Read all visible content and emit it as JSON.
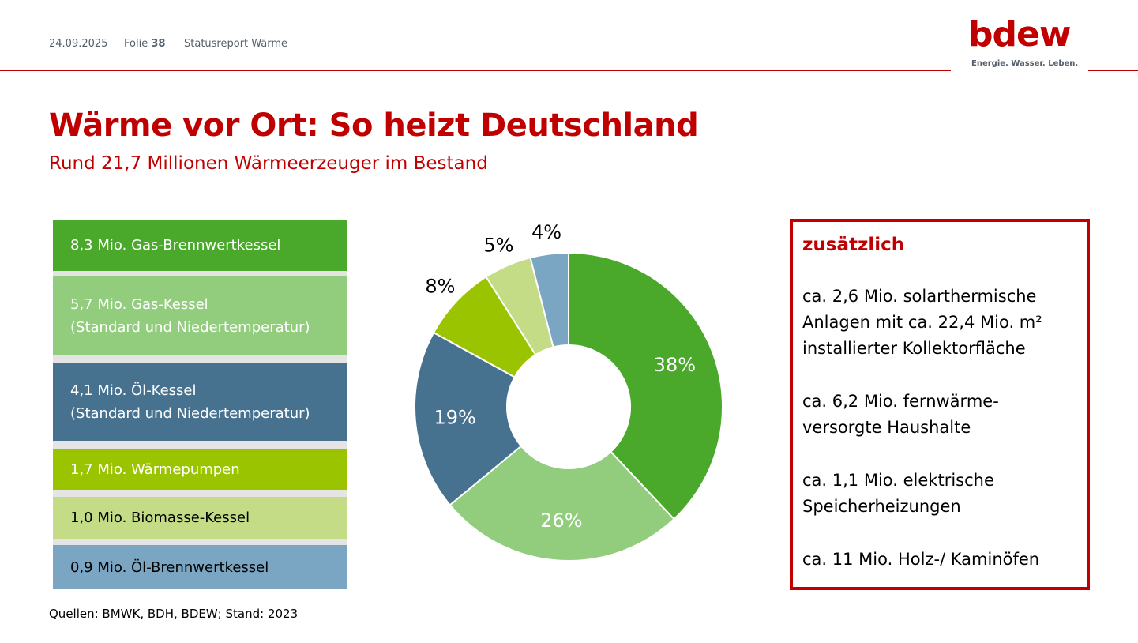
{
  "header": {
    "date": "24.09.2025",
    "folie_label": "Folie",
    "folie_number": "38",
    "report": "Statusreport Wärme"
  },
  "logo": {
    "text": "bdew",
    "tagline": "Energie. Wasser. Leben.",
    "color": "#c00000"
  },
  "title": "Wärme vor Ort: So heizt Deutschland",
  "subtitle": "Rund 21,7 Millionen Wärmeerzeuger im Bestand",
  "legend": [
    {
      "line1": "8,3 Mio. Gas-Brennwertkessel",
      "line2": "",
      "color": "#4aa92b",
      "text_color": "#ffffff"
    },
    {
      "line1": "5,7 Mio. Gas-Kessel",
      "line2": "(Standard und Niedertemperatur)",
      "color": "#92cd7e",
      "text_color": "#ffffff"
    },
    {
      "line1": "4,1 Mio. Öl-Kessel",
      "line2": "(Standard und Niedertemperatur)",
      "color": "#47728f",
      "text_color": "#ffffff"
    },
    {
      "line1": "1,7 Mio. Wärmepumpen",
      "line2": "",
      "color": "#9bc400",
      "text_color": "#ffffff"
    },
    {
      "line1": "1,0 Mio. Biomasse-Kessel",
      "line2": "",
      "color": "#c4dc86",
      "text_color": "#000000"
    },
    {
      "line1": "0,9 Mio. Öl-Brennwertkessel",
      "line2": "",
      "color": "#7ba6c3",
      "text_color": "#000000"
    }
  ],
  "chart_data": {
    "type": "pie",
    "donut": true,
    "categories": [
      "Gas-Brennwertkessel",
      "Gas-Kessel",
      "Öl-Kessel",
      "Wärmepumpen",
      "Biomasse-Kessel",
      "Öl-Brennwertkessel"
    ],
    "values": [
      38,
      26,
      19,
      8,
      5,
      4
    ],
    "labels": [
      "38%",
      "26%",
      "19%",
      "8%",
      "5%",
      "4%"
    ],
    "colors": [
      "#4aa92b",
      "#92cd7e",
      "#47728f",
      "#9bc400",
      "#c4dc86",
      "#7ba6c3"
    ]
  },
  "source": "Quellen: BMWK, BDH, BDEW; Stand: 2023",
  "additional": {
    "title": "zusätzlich",
    "items": [
      "ca. 2,6 Mio. solarthermische Anlagen mit ca. 22,4 Mio. m² installierter Kollektorfläche",
      "ca. 6,2 Mio. fernwärme-versorgte Haushalte",
      "ca. 1,1 Mio. elektrische Speicherheizungen",
      "ca. 11 Mio. Holz-/ Kaminöfen"
    ]
  }
}
